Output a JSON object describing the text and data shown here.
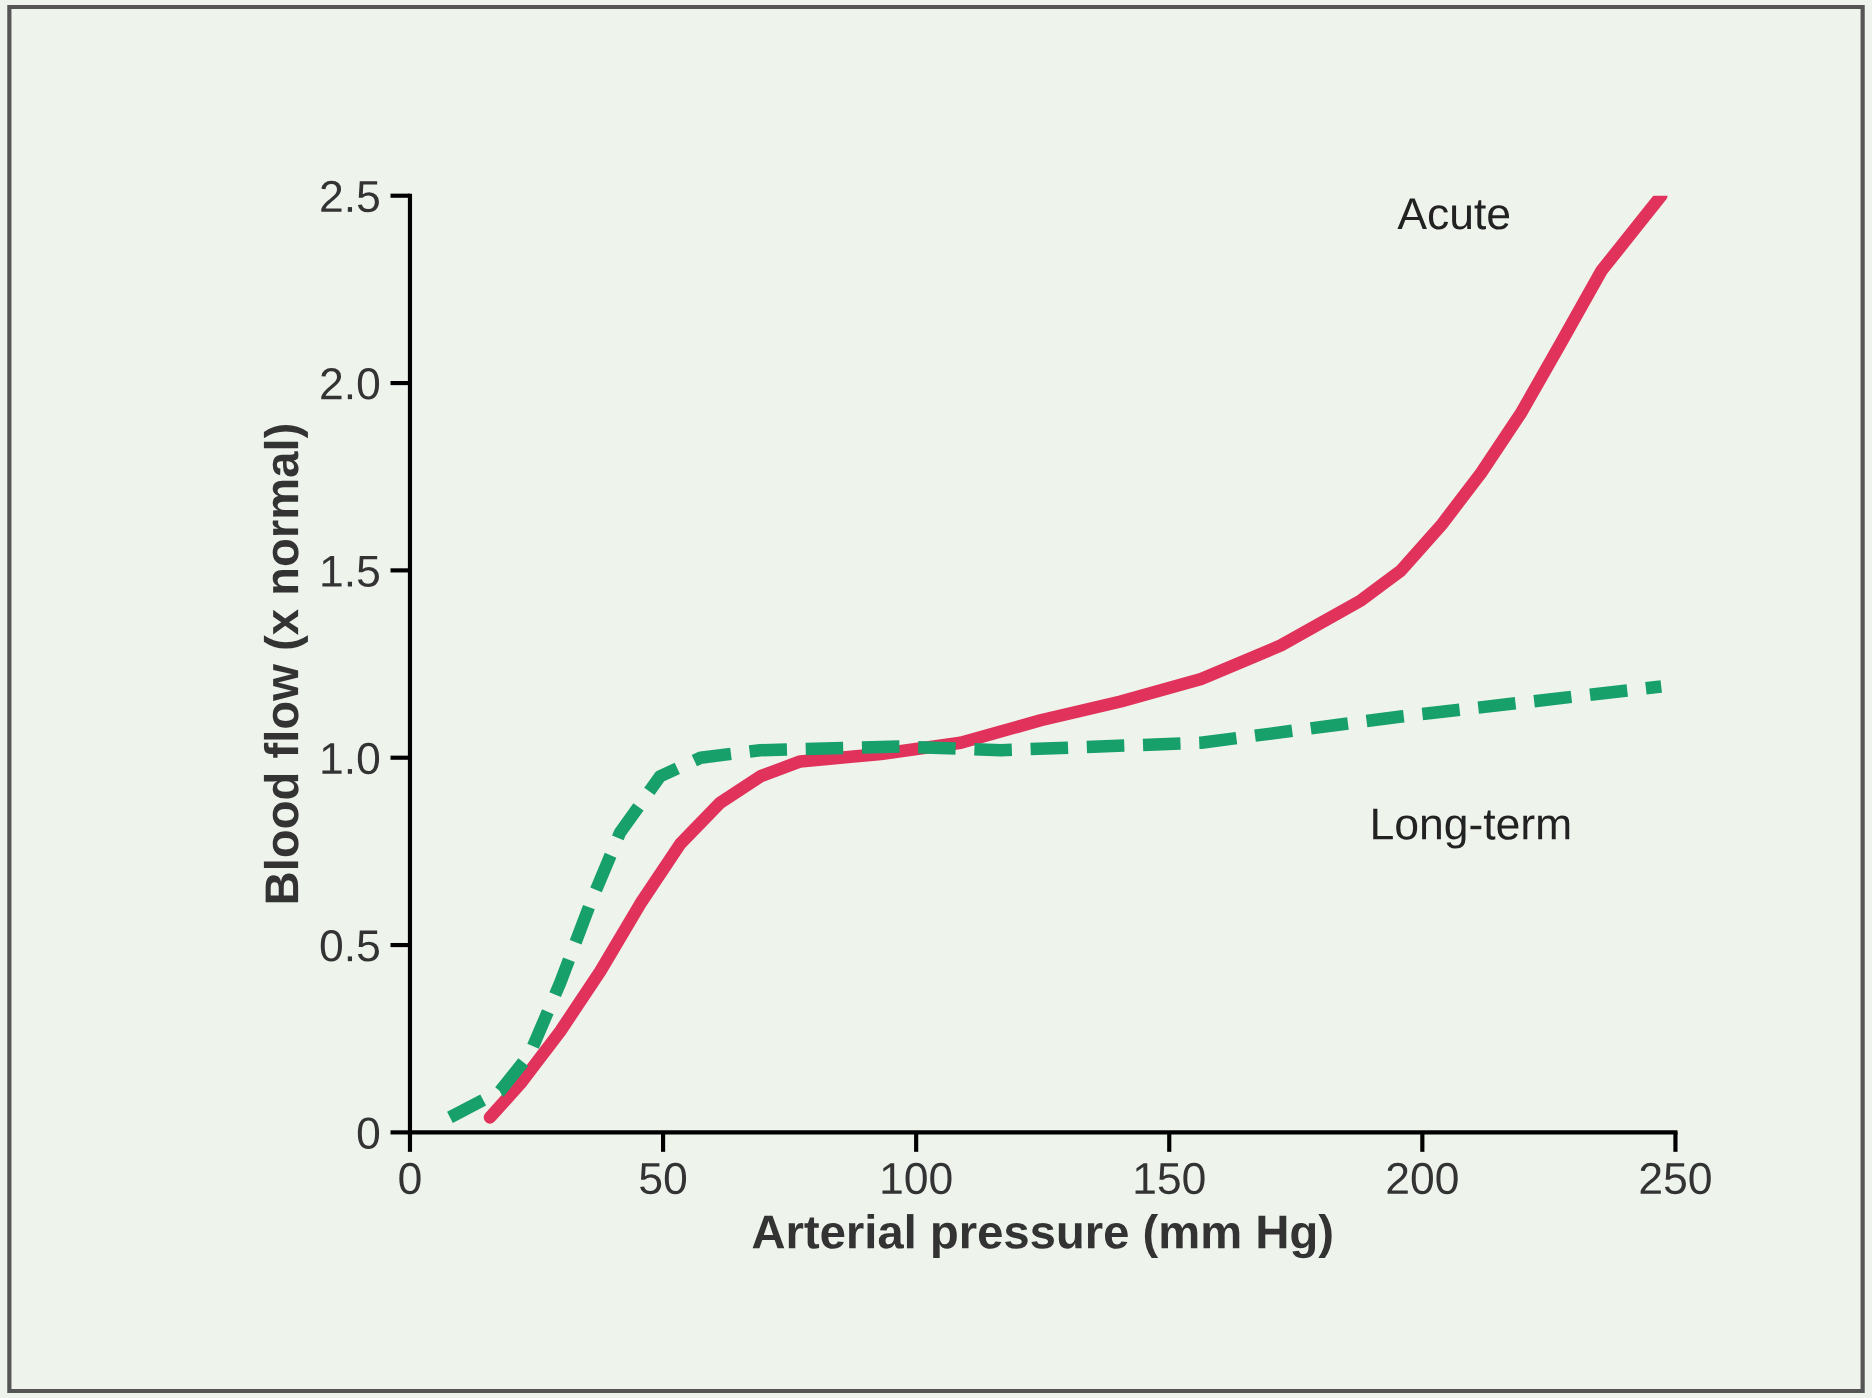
{
  "chart_data": {
    "type": "line",
    "xlabel": "Arterial pressure (mm Hg)",
    "ylabel": "Blood flow (x normal)",
    "xlim": [
      0,
      250
    ],
    "xticks": [
      0,
      50,
      100,
      150,
      200,
      250
    ],
    "ylim": [
      0,
      2.5
    ],
    "yticks": [
      0,
      {
        "value": 0.5,
        "label": "0.5"
      },
      {
        "value": 1,
        "label": "1.0"
      },
      {
        "value": 1.5,
        "label": "1.5"
      },
      {
        "value": 2,
        "label": "2.0"
      },
      {
        "value": 2.5,
        "label": "2.5"
      }
    ],
    "grid": false,
    "legend": false,
    "series": [
      {
        "name": "Acute",
        "color": "#e0325a",
        "line_style": "solid",
        "x": [
          15.8,
          21.8,
          29.7,
          37.6,
          45.5,
          53.4,
          61.3,
          69.2,
          77.1,
          93,
          108.8,
          124.6,
          140.4,
          156.3,
          172.1,
          187.9,
          195.8,
          203.7,
          211.6,
          219.5,
          227.5,
          235.4,
          247.2
        ],
        "values": [
          0.04,
          0.13,
          0.27,
          0.43,
          0.61,
          0.77,
          0.88,
          0.95,
          0.99,
          1.01,
          1.04,
          1.1,
          1.15,
          1.21,
          1.3,
          1.42,
          1.5,
          1.62,
          1.76,
          1.92,
          2.11,
          2.3,
          2.5
        ]
      },
      {
        "name": "Long-term",
        "color": "#17a06a",
        "line_style": "dashed",
        "x": [
          7.9,
          17.8,
          23.7,
          29.7,
          35.6,
          41.5,
          49.4,
          57.4,
          69.2,
          96.9,
          116.7,
          156.3,
          195.8,
          247.2
        ],
        "values": [
          0.04,
          0.11,
          0.21,
          0.4,
          0.61,
          0.8,
          0.95,
          1.0,
          1.02,
          1.03,
          1.02,
          1.04,
          1.11,
          1.19
        ]
      }
    ]
  }
}
